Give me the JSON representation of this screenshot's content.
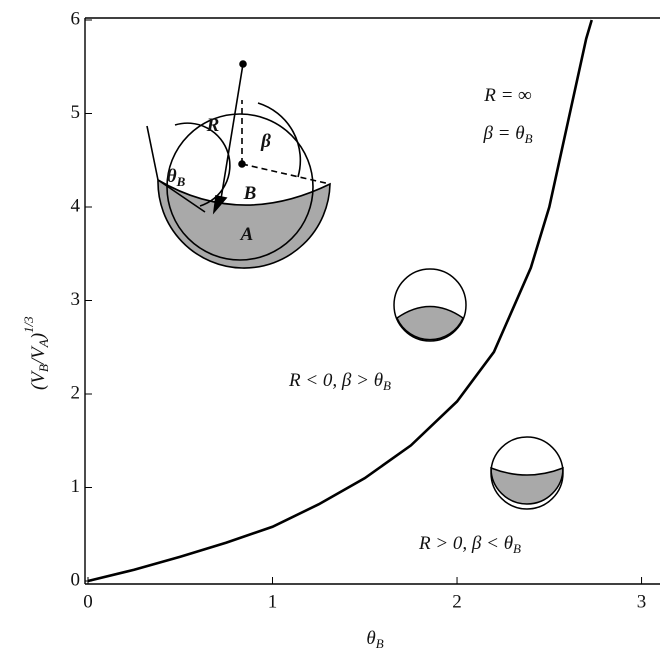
{
  "chart_data": {
    "type": "line",
    "xlabel": [
      "θ",
      "B"
    ],
    "ylabel": [
      "(V",
      "B",
      "/V",
      "A",
      ")"
    ],
    "ylabel_power": "1/3",
    "x": [
      0,
      0.25,
      0.5,
      0.75,
      1.0,
      1.25,
      1.5,
      1.75,
      2.0,
      2.2,
      2.4,
      2.5,
      2.6,
      2.7,
      2.73
    ],
    "series": [
      {
        "color": "#000000",
        "values": [
          0,
          0.12,
          0.26,
          0.41,
          0.58,
          0.82,
          1.1,
          1.45,
          1.92,
          2.45,
          3.35,
          4.0,
          4.9,
          5.8,
          6.0
        ]
      }
    ],
    "xlim": [
      0,
      3.1
    ],
    "xticks": [
      0,
      1,
      2,
      3
    ],
    "ylim": [
      0,
      6
    ],
    "yticks": [
      0,
      1,
      2,
      3,
      4,
      5,
      6
    ],
    "annotations": [
      [
        "R = ∞"
      ],
      [
        "β = θ",
        "B"
      ],
      [
        "R < 0, β > θ",
        "B"
      ],
      [
        "R > 0, β < θ",
        "B"
      ]
    ],
    "inset_labels": [
      [
        "R"
      ],
      [
        "β"
      ],
      [
        "θ",
        "B"
      ],
      [
        "B"
      ],
      [
        "A"
      ]
    ]
  }
}
